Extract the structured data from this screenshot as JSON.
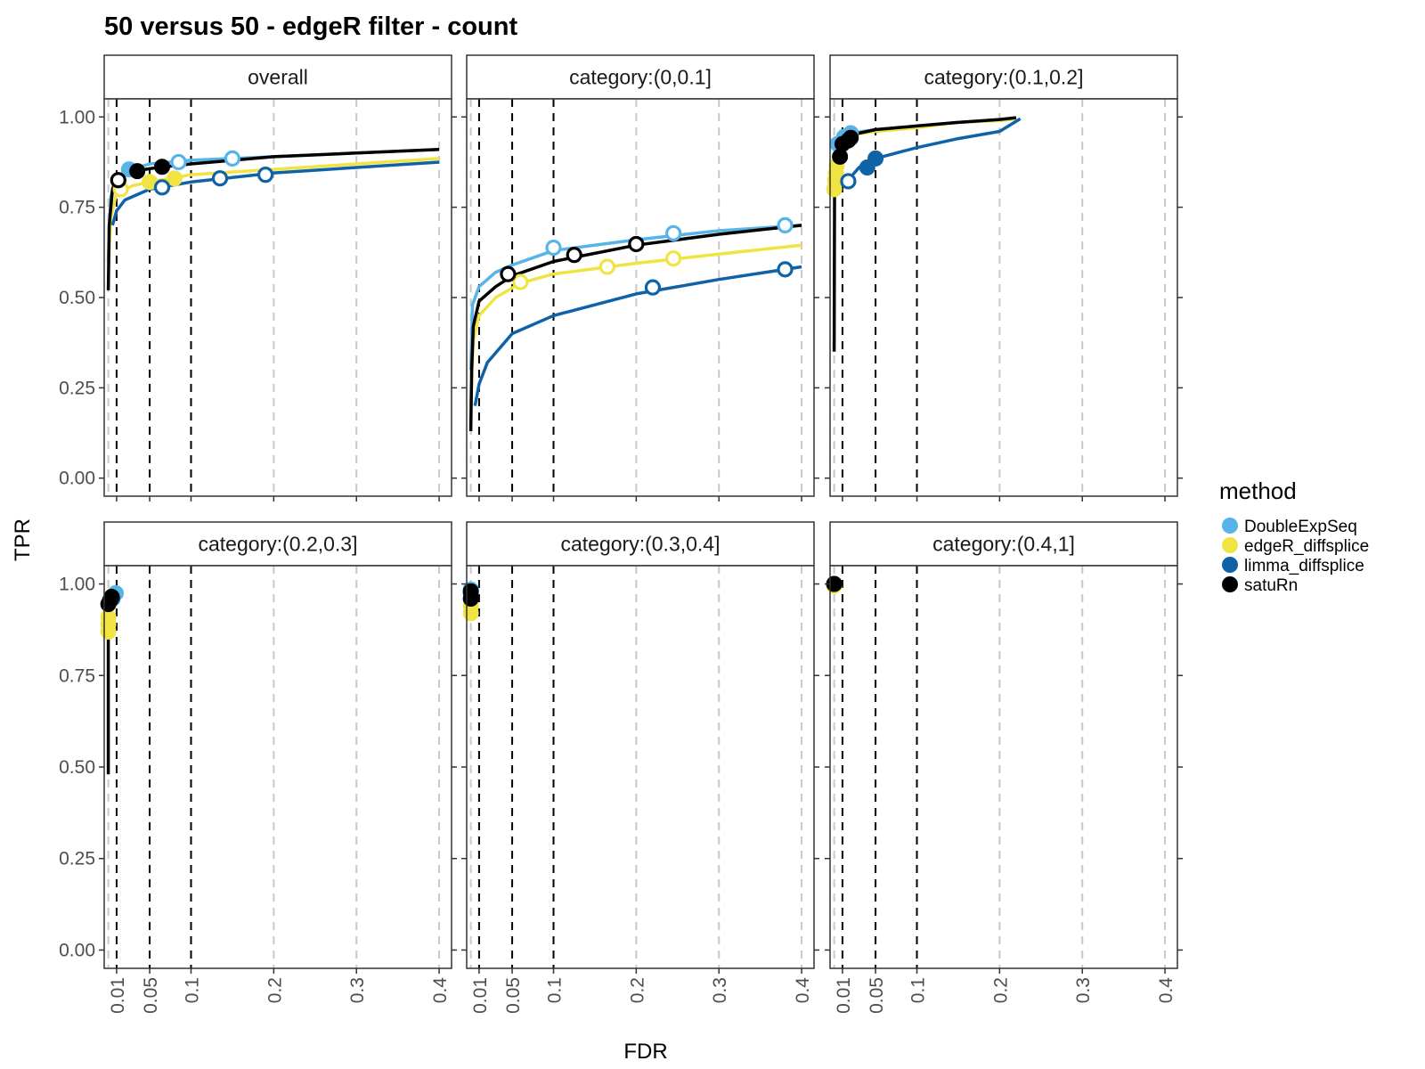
{
  "colors": {
    "DoubleExpSeq": "#56B4E9",
    "edgeR_diffsplice": "#F0E442",
    "limma_diffsplice": "#0F62A8",
    "satuRn": "#000000",
    "threshold_line": "#000000",
    "grid_dash": "#c8c8c8"
  },
  "chart_data": {
    "type": "line",
    "title": "50 versus 50 - edgeR filter - count",
    "xlabel": "FDR",
    "ylabel": "TPR",
    "xlim": [
      -0.005,
      0.415
    ],
    "ylim": [
      -0.05,
      1.05
    ],
    "x_ticks": [
      "0.01",
      "0.05",
      "0.1",
      "0.2",
      "0.3",
      "0.4"
    ],
    "x_tick_values": [
      0.01,
      0.05,
      0.1,
      0.2,
      0.3,
      0.4
    ],
    "y_ticks": [
      "0.00",
      "0.25",
      "0.50",
      "0.75",
      "1.00"
    ],
    "y_tick_values": [
      0,
      0.25,
      0.5,
      0.75,
      1.0
    ],
    "threshold_lines": [
      0.01,
      0.05,
      0.1
    ],
    "legend": {
      "title": "method",
      "position": "right",
      "entries": [
        "DoubleExpSeq",
        "edgeR_diffsplice",
        "limma_diffsplice",
        "satuRn"
      ]
    },
    "panels": [
      {
        "label": "overall",
        "series": [
          {
            "name": "DoubleExpSeq",
            "x": [
              0.0,
              0.003,
              0.01,
              0.02,
              0.05,
              0.1,
              0.2,
              0.3,
              0.4
            ],
            "y": [
              0.6,
              0.78,
              0.83,
              0.85,
              0.87,
              0.88,
              0.89,
              0.9,
              0.91
            ],
            "points": [
              {
                "x": 0.025,
                "y": 0.855,
                "filled": true
              },
              {
                "x": 0.085,
                "y": 0.875,
                "filled": false
              },
              {
                "x": 0.15,
                "y": 0.885,
                "filled": false
              }
            ]
          },
          {
            "name": "edgeR_diffsplice",
            "x": [
              0.0,
              0.003,
              0.01,
              0.03,
              0.05,
              0.1,
              0.2,
              0.3,
              0.4
            ],
            "y": [
              0.6,
              0.72,
              0.79,
              0.81,
              0.82,
              0.84,
              0.855,
              0.87,
              0.885
            ],
            "points": [
              {
                "x": 0.015,
                "y": 0.8,
                "filled": false
              },
              {
                "x": 0.05,
                "y": 0.82,
                "filled": true
              },
              {
                "x": 0.08,
                "y": 0.83,
                "filled": true
              }
            ]
          },
          {
            "name": "limma_diffsplice",
            "x": [
              0.005,
              0.01,
              0.02,
              0.05,
              0.1,
              0.2,
              0.3,
              0.4
            ],
            "y": [
              0.7,
              0.74,
              0.77,
              0.8,
              0.82,
              0.845,
              0.86,
              0.875
            ],
            "points": [
              {
                "x": 0.065,
                "y": 0.805,
                "filled": false
              },
              {
                "x": 0.135,
                "y": 0.83,
                "filled": false
              },
              {
                "x": 0.19,
                "y": 0.84,
                "filled": false
              }
            ]
          },
          {
            "name": "satuRn",
            "x": [
              0.0,
              0.001,
              0.005,
              0.01,
              0.03,
              0.06,
              0.1,
              0.2,
              0.3,
              0.4
            ],
            "y": [
              0.52,
              0.7,
              0.8,
              0.83,
              0.85,
              0.86,
              0.87,
              0.89,
              0.9,
              0.91
            ],
            "points": [
              {
                "x": 0.012,
                "y": 0.825,
                "filled": false
              },
              {
                "x": 0.035,
                "y": 0.85,
                "filled": true
              },
              {
                "x": 0.065,
                "y": 0.862,
                "filled": true
              }
            ]
          }
        ]
      },
      {
        "label": "category:(0,0.1]",
        "series": [
          {
            "name": "DoubleExpSeq",
            "x": [
              0.0,
              0.002,
              0.01,
              0.03,
              0.05,
              0.1,
              0.2,
              0.3,
              0.4
            ],
            "y": [
              0.3,
              0.48,
              0.53,
              0.57,
              0.59,
              0.63,
              0.66,
              0.685,
              0.7
            ],
            "points": [
              {
                "x": 0.1,
                "y": 0.638,
                "filled": false
              },
              {
                "x": 0.245,
                "y": 0.678,
                "filled": false
              },
              {
                "x": 0.38,
                "y": 0.7,
                "filled": false
              }
            ]
          },
          {
            "name": "edgeR_diffsplice",
            "x": [
              0.0,
              0.003,
              0.01,
              0.03,
              0.06,
              0.1,
              0.2,
              0.3,
              0.4
            ],
            "y": [
              0.2,
              0.38,
              0.45,
              0.5,
              0.54,
              0.565,
              0.595,
              0.62,
              0.645
            ],
            "points": [
              {
                "x": 0.06,
                "y": 0.543,
                "filled": false
              },
              {
                "x": 0.165,
                "y": 0.585,
                "filled": false
              },
              {
                "x": 0.245,
                "y": 0.608,
                "filled": false
              }
            ]
          },
          {
            "name": "limma_diffsplice",
            "x": [
              0.005,
              0.01,
              0.02,
              0.05,
              0.1,
              0.2,
              0.3,
              0.4
            ],
            "y": [
              0.2,
              0.26,
              0.32,
              0.4,
              0.45,
              0.51,
              0.55,
              0.585
            ],
            "points": [
              {
                "x": 0.22,
                "y": 0.528,
                "filled": false
              },
              {
                "x": 0.38,
                "y": 0.578,
                "filled": false
              }
            ]
          },
          {
            "name": "satuRn",
            "x": [
              0.0,
              0.001,
              0.003,
              0.01,
              0.03,
              0.05,
              0.1,
              0.2,
              0.3,
              0.4
            ],
            "y": [
              0.13,
              0.3,
              0.42,
              0.49,
              0.53,
              0.56,
              0.6,
              0.645,
              0.675,
              0.7
            ],
            "points": [
              {
                "x": 0.045,
                "y": 0.565,
                "filled": false
              },
              {
                "x": 0.125,
                "y": 0.618,
                "filled": false
              },
              {
                "x": 0.2,
                "y": 0.648,
                "filled": false
              }
            ]
          }
        ]
      },
      {
        "label": "category:(0.1,0.2]",
        "series": [
          {
            "name": "DoubleExpSeq",
            "x": [
              0.0,
              0.003,
              0.01,
              0.02,
              0.05,
              0.1,
              0.15,
              0.2,
              0.22
            ],
            "y": [
              0.8,
              0.9,
              0.94,
              0.955,
              0.965,
              0.975,
              0.985,
              0.99,
              0.995
            ],
            "points": [
              {
                "x": 0.004,
                "y": 0.925,
                "filled": true
              },
              {
                "x": 0.012,
                "y": 0.945,
                "filled": true
              },
              {
                "x": 0.02,
                "y": 0.955,
                "filled": true
              }
            ]
          },
          {
            "name": "edgeR_diffsplice",
            "x": [
              0.0,
              0.003,
              0.01,
              0.02,
              0.05,
              0.1,
              0.15,
              0.2,
              0.22
            ],
            "y": [
              0.8,
              0.87,
              0.92,
              0.95,
              0.96,
              0.97,
              0.985,
              0.99,
              0.995
            ],
            "points": [
              {
                "x": 0.0,
                "y": 0.8,
                "filled": true
              },
              {
                "x": 0.001,
                "y": 0.825,
                "filled": true
              },
              {
                "x": 0.002,
                "y": 0.845,
                "filled": true
              },
              {
                "x": 0.003,
                "y": 0.865,
                "filled": true
              }
            ]
          },
          {
            "name": "limma_diffsplice",
            "x": [
              0.015,
              0.03,
              0.05,
              0.1,
              0.15,
              0.2,
              0.225
            ],
            "y": [
              0.82,
              0.86,
              0.885,
              0.915,
              0.94,
              0.96,
              0.995
            ],
            "points": [
              {
                "x": 0.017,
                "y": 0.822,
                "filled": false
              },
              {
                "x": 0.04,
                "y": 0.86,
                "filled": true
              },
              {
                "x": 0.05,
                "y": 0.885,
                "filled": true
              }
            ]
          },
          {
            "name": "satuRn",
            "x": [
              0.0,
              0.0005,
              0.003,
              0.01,
              0.02,
              0.05,
              0.1,
              0.15,
              0.2,
              0.22
            ],
            "y": [
              0.35,
              0.85,
              0.89,
              0.93,
              0.95,
              0.965,
              0.975,
              0.985,
              0.993,
              0.998
            ],
            "points": [
              {
                "x": 0.007,
                "y": 0.89,
                "filled": true
              },
              {
                "x": 0.01,
                "y": 0.925,
                "filled": true
              },
              {
                "x": 0.017,
                "y": 0.935,
                "filled": true
              },
              {
                "x": 0.02,
                "y": 0.942,
                "filled": true
              }
            ]
          }
        ]
      },
      {
        "label": "category:(0.2,0.3]",
        "series": [
          {
            "name": "DoubleExpSeq",
            "x": [
              0.003,
              0.01
            ],
            "y": [
              0.95,
              0.975
            ],
            "points": [
              {
                "x": 0.005,
                "y": 0.965,
                "filled": true
              },
              {
                "x": 0.009,
                "y": 0.975,
                "filled": true
              }
            ]
          },
          {
            "name": "edgeR_diffsplice",
            "x": [
              0.0,
              0.002
            ],
            "y": [
              0.87,
              0.91
            ],
            "points": [
              {
                "x": 0.0,
                "y": 0.87,
                "filled": true
              },
              {
                "x": 0.0,
                "y": 0.89,
                "filled": true
              },
              {
                "x": 0.0,
                "y": 0.91,
                "filled": true
              }
            ]
          },
          {
            "name": "limma_diffsplice",
            "x": [
              0.004,
              0.009
            ],
            "y": [
              0.955,
              0.975
            ],
            "points": [
              {
                "x": 0.005,
                "y": 0.96,
                "filled": true
              }
            ]
          },
          {
            "name": "satuRn",
            "x": [
              0.0,
              0.0,
              0.002,
              0.005
            ],
            "y": [
              0.48,
              0.93,
              0.955,
              0.965
            ],
            "points": [
              {
                "x": 0.0,
                "y": 0.945,
                "filled": true
              },
              {
                "x": 0.002,
                "y": 0.955,
                "filled": true
              },
              {
                "x": 0.004,
                "y": 0.965,
                "filled": true
              }
            ]
          }
        ]
      },
      {
        "label": "category:(0.3,0.4]",
        "series": [
          {
            "name": "DoubleExpSeq",
            "x": [
              0.0,
              0.002
            ],
            "y": [
              0.975,
              0.985
            ],
            "points": [
              {
                "x": 0.0,
                "y": 0.985,
                "filled": true
              }
            ]
          },
          {
            "name": "edgeR_diffsplice",
            "x": [
              0.0,
              0.0
            ],
            "y": [
              0.92,
              0.95
            ],
            "points": [
              {
                "x": 0.0,
                "y": 0.92,
                "filled": true
              },
              {
                "x": 0.0,
                "y": 0.94,
                "filled": true
              }
            ]
          },
          {
            "name": "limma_diffsplice",
            "x": [
              0.0,
              0.002
            ],
            "y": [
              0.97,
              0.985
            ],
            "points": [
              {
                "x": 0.0,
                "y": 0.975,
                "filled": true
              }
            ]
          },
          {
            "name": "satuRn",
            "x": [
              0.0,
              0.0
            ],
            "y": [
              0.955,
              0.98
            ],
            "points": [
              {
                "x": 0.0,
                "y": 0.96,
                "filled": true
              },
              {
                "x": 0.0,
                "y": 0.98,
                "filled": true
              }
            ]
          }
        ]
      },
      {
        "label": "category:(0.4,1]",
        "series": [
          {
            "name": "DoubleExpSeq",
            "x": [
              0.0,
              0.0
            ],
            "y": [
              1.0,
              1.0
            ],
            "points": [
              {
                "x": 0.0,
                "y": 1.0,
                "filled": true
              }
            ]
          },
          {
            "name": "edgeR_diffsplice",
            "x": [
              0.0,
              0.0
            ],
            "y": [
              0.995,
              0.995
            ],
            "points": [
              {
                "x": 0.0,
                "y": 0.995,
                "filled": true
              }
            ]
          },
          {
            "name": "limma_diffsplice",
            "x": [
              0.0,
              0.0
            ],
            "y": [
              1.0,
              1.0
            ],
            "points": [
              {
                "x": 0.0,
                "y": 1.0,
                "filled": true
              }
            ]
          },
          {
            "name": "satuRn",
            "x": [
              0.0,
              0.0
            ],
            "y": [
              1.0,
              1.0
            ],
            "points": [
              {
                "x": 0.0,
                "y": 1.0,
                "filled": true
              }
            ]
          }
        ]
      }
    ]
  }
}
